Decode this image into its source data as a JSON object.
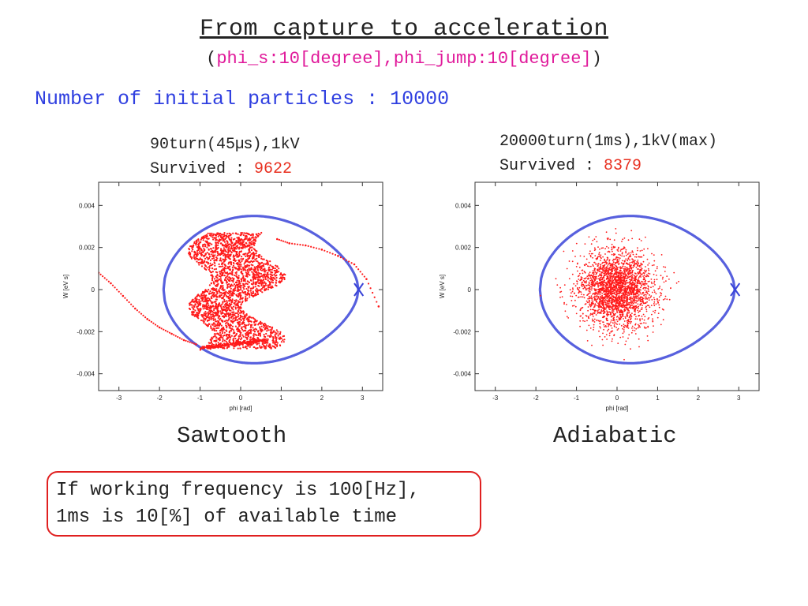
{
  "title": "From capture to acceleration",
  "subtitle": {
    "open": "(",
    "phi_s": "phi_s:10[degree]",
    "sep": ",",
    "phi_jump": "phi_jump:10[degree]",
    "close": ")"
  },
  "initial_particles": "Number of initial particles : 10000",
  "left": {
    "caption_line1_pre": "90turn(45",
    "caption_line1_unit": "μs",
    "caption_line1_post": "),1kV",
    "survived_label": "Survived : ",
    "survived_value": "9622",
    "label": "Sawtooth"
  },
  "right": {
    "caption_line1": "20000turn(1ms),1kV(max)",
    "survived_label": "Survived : ",
    "survived_value": "8379",
    "label": "Adiabatic"
  },
  "note": {
    "line1": "If working frequency is 100[Hz],",
    "line2": "1ms is 10[%] of available time"
  },
  "colors": {
    "separatrix": "#3a44d8",
    "particles": "#ff1a1a",
    "accent_magenta": "#e0199a",
    "accent_blue": "#2f3fe0"
  },
  "chart_data": [
    {
      "type": "scatter",
      "xlabel": "phi [rad]",
      "ylabel": "W [eV s]",
      "xlim": [
        -3.5,
        3.5
      ],
      "ylim": [
        -0.0048,
        0.0051
      ],
      "x_ticks": [
        "-3",
        "-2",
        "-1",
        "0",
        "1",
        "2",
        "3"
      ],
      "y_ticks": [
        "0.004",
        "0.002",
        "0",
        "-0.002",
        "-0.004"
      ],
      "separatrix": {
        "phi_stable": 0.0,
        "phi_unstable": 2.9,
        "phi_left": -1.9,
        "w_max": 0.0035
      },
      "distribution": {
        "shape": "filamented-band",
        "phi_range": [
          -1.0,
          0.9
        ],
        "w_range": [
          -0.0028,
          0.0027
        ]
      },
      "tail_points": [
        {
          "x": -3.5,
          "y": 0.0008
        },
        {
          "x": -3.2,
          "y": 0.0003
        },
        {
          "x": -2.9,
          "y": -0.0003
        },
        {
          "x": -2.6,
          "y": -0.0009
        },
        {
          "x": -2.3,
          "y": -0.0014
        },
        {
          "x": -2.0,
          "y": -0.0018
        },
        {
          "x": -1.7,
          "y": -0.0021
        },
        {
          "x": -1.4,
          "y": -0.0024
        },
        {
          "x": -1.1,
          "y": -0.0026
        },
        {
          "x": 0.9,
          "y": 0.0024
        },
        {
          "x": 1.2,
          "y": 0.0022
        },
        {
          "x": 1.6,
          "y": 0.0021
        },
        {
          "x": 2.0,
          "y": 0.0019
        },
        {
          "x": 2.4,
          "y": 0.0016
        },
        {
          "x": 2.8,
          "y": 0.0012
        },
        {
          "x": 3.1,
          "y": 0.0005
        },
        {
          "x": 3.4,
          "y": -0.0008
        }
      ]
    },
    {
      "type": "scatter",
      "xlabel": "phi [rad]",
      "ylabel": "W [eV s]",
      "xlim": [
        -3.5,
        3.5
      ],
      "ylim": [
        -0.0048,
        0.0051
      ],
      "x_ticks": [
        "-3",
        "-2",
        "-1",
        "0",
        "1",
        "2",
        "3"
      ],
      "y_ticks": [
        "0.004",
        "0.002",
        "0",
        "-0.002",
        "-0.004"
      ],
      "separatrix": {
        "phi_stable": 0.0,
        "phi_unstable": 2.9,
        "phi_left": -1.9,
        "w_max": 0.0035
      },
      "distribution": {
        "shape": "gaussian-core",
        "center": [
          0.0,
          0.0
        ],
        "phi_sigma": 0.45,
        "w_sigma": 0.0009
      }
    }
  ]
}
